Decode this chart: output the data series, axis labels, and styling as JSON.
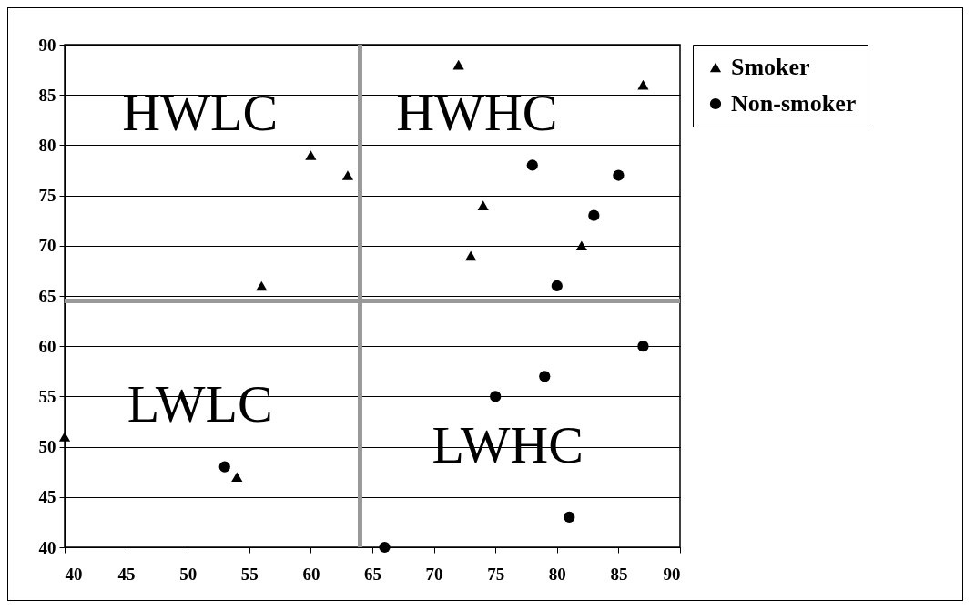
{
  "chart_data": {
    "type": "scatter",
    "series": [
      {
        "name": "Smoker",
        "color": "#000000",
        "marker": "triangle",
        "x": [
          72,
          87,
          60,
          63,
          74,
          73,
          82,
          56,
          40,
          54
        ],
        "values": [
          88,
          86,
          79,
          77,
          74,
          69,
          70,
          66,
          51,
          47
        ]
      },
      {
        "name": "Non-smoker",
        "color": "#000000",
        "marker": "circle",
        "x": [
          78,
          85,
          83,
          80,
          87,
          79,
          75,
          53,
          81,
          66
        ],
        "values": [
          78,
          77,
          73,
          66,
          60,
          57,
          55,
          48,
          43,
          40
        ]
      }
    ],
    "xlim": [
      40,
      90
    ],
    "xticks": [
      40,
      45,
      50,
      55,
      60,
      65,
      70,
      75,
      80,
      85,
      90
    ],
    "ylim": [
      40,
      90
    ],
    "yticks": [
      40,
      45,
      50,
      55,
      60,
      65,
      70,
      75,
      80,
      85,
      90
    ],
    "ref_lines": [
      {
        "axis": "x",
        "value": 64,
        "color": "#999999"
      },
      {
        "axis": "y",
        "value": 64.5,
        "color": "#999999"
      }
    ],
    "annotations": [
      "HWLC",
      "HWHC",
      "LWLC",
      "LWHC"
    ],
    "grid": "y",
    "legend": "right"
  }
}
